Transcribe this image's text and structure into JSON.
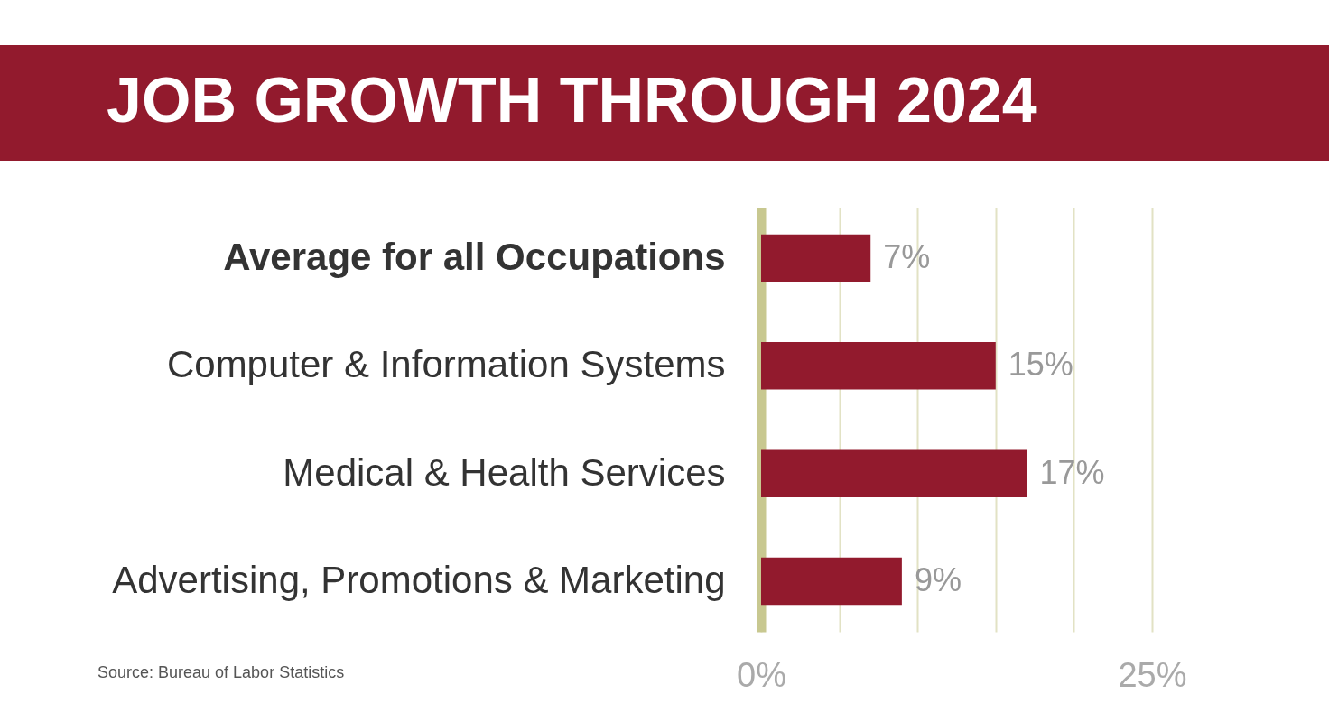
{
  "chart_data": {
    "type": "bar",
    "orientation": "horizontal",
    "title": "JOB GROWTH THROUGH 2024",
    "categories": [
      "Average for all Occupations",
      "Computer & Information Systems",
      "Medical & Health Services",
      "Advertising, Promotions & Marketing"
    ],
    "values": [
      7,
      15,
      17,
      9
    ],
    "color": "#921a2d",
    "value_labels": [
      "7%",
      "15%",
      "17%",
      "9%"
    ],
    "xlim": [
      0,
      25
    ],
    "xticks": [
      {
        "value": 0,
        "label": "0%"
      },
      {
        "value": 5,
        "label": null
      },
      {
        "value": 10,
        "label": null
      },
      {
        "value": 15,
        "label": null
      },
      {
        "value": 20,
        "label": null
      },
      {
        "value": 25,
        "label": "25%"
      }
    ],
    "grid": "x",
    "annotations": [
      "Source: Bureau of Labor Statistics"
    ]
  }
}
